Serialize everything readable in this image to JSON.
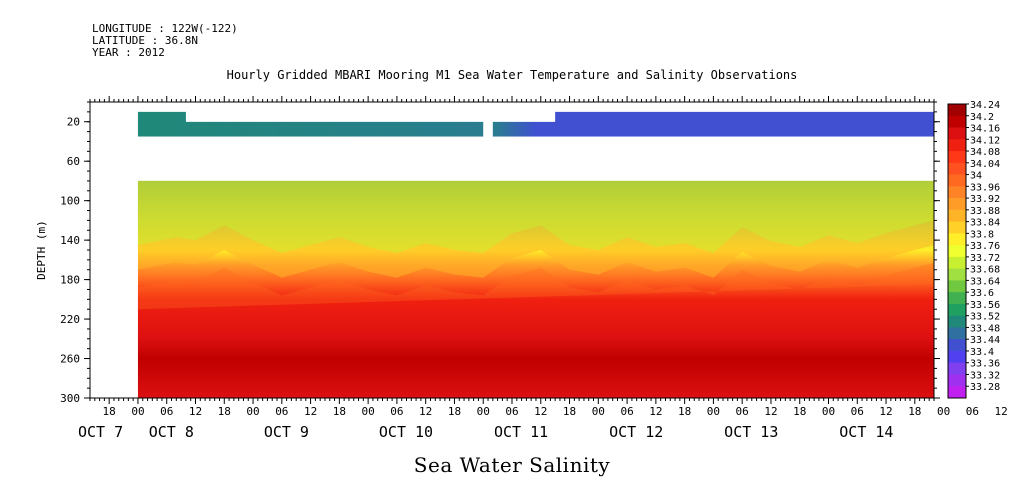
{
  "header": {
    "longitude": "LONGITUDE : 122W(-122)",
    "latitude": "LATITUDE : 36.8N",
    "year": "YEAR : 2012"
  },
  "chart_data": {
    "type": "heatmap",
    "title": "Hourly Gridded MBARI Mooring M1 Sea Water Temperature and Salinity Observations",
    "xlabel": "Sea Water Salinity",
    "ylabel": "DEPTH (m)",
    "x_range_hours_from_oct7_00": [
      -10,
      166
    ],
    "ylim": [
      300,
      0
    ],
    "y_ticks": [
      20,
      60,
      100,
      140,
      180,
      220,
      260,
      300
    ],
    "x_hour_ticks": [
      "18",
      "00",
      "06",
      "12",
      "18",
      "00",
      "06",
      "12",
      "18",
      "00",
      "06",
      "12",
      "18",
      "00",
      "06",
      "12",
      "18",
      "00",
      "06",
      "12",
      "18",
      "00",
      "06",
      "12",
      "18",
      "00",
      "06",
      "12",
      "18",
      "00",
      "06",
      "12",
      "18",
      "00",
      "06",
      "12"
    ],
    "x_day_labels": [
      "OCT  7",
      "OCT  8",
      "OCT  9",
      "OCT 10",
      "OCT 11",
      "OCT 12",
      "OCT 13",
      "OCT 14"
    ],
    "colorbar_levels": [
      34.24,
      34.2,
      34.16,
      34.12,
      34.08,
      34.04,
      34,
      33.96,
      33.92,
      33.88,
      33.84,
      33.8,
      33.76,
      33.72,
      33.68,
      33.64,
      33.6,
      33.56,
      33.52,
      33.48,
      33.44,
      33.4,
      33.36,
      33.32,
      33.28
    ],
    "colorbar_colors": [
      "#a00000",
      "#c00000",
      "#dc1010",
      "#f02010",
      "#ff3818",
      "#ff5020",
      "#ff6a20",
      "#ff8428",
      "#ff9c28",
      "#ffb428",
      "#ffd028",
      "#ffee28",
      "#f0ff30",
      "#c8f030",
      "#a0e040",
      "#70c840",
      "#40b050",
      "#20a060",
      "#208878",
      "#3070a0",
      "#4050d0",
      "#5040f0",
      "#8040f0",
      "#a030f0",
      "#c020f0"
    ],
    "layers": [
      {
        "name": "shallow",
        "depth_range": [
          10,
          35
        ],
        "values": "33.40–33.56",
        "gaps_hours": [
          [
            -10,
            0
          ],
          [
            72,
            74
          ]
        ]
      },
      {
        "name": "no data",
        "depth_range": [
          35,
          80
        ]
      },
      {
        "name": "deep",
        "depth_range": [
          80,
          300
        ],
        "profile": {
          "80": 33.56,
          "120": 33.68,
          "150": 33.8,
          "165": 33.9,
          "180": 34.0,
          "200": 34.1,
          "240": 34.16,
          "260": 34.2,
          "300": 34.14
        }
      }
    ],
    "halocline_depth_m_by_hour": [
      [
        0,
        170
      ],
      [
        8,
        162
      ],
      [
        12,
        165
      ],
      [
        18,
        150
      ],
      [
        24,
        165
      ],
      [
        30,
        178
      ],
      [
        36,
        170
      ],
      [
        42,
        162
      ],
      [
        48,
        172
      ],
      [
        54,
        178
      ],
      [
        60,
        168
      ],
      [
        66,
        175
      ],
      [
        72,
        178
      ],
      [
        78,
        158
      ],
      [
        84,
        150
      ],
      [
        90,
        170
      ],
      [
        96,
        175
      ],
      [
        102,
        162
      ],
      [
        108,
        172
      ],
      [
        114,
        168
      ],
      [
        120,
        178
      ],
      [
        126,
        152
      ],
      [
        132,
        166
      ],
      [
        138,
        172
      ],
      [
        144,
        160
      ],
      [
        150,
        168
      ],
      [
        156,
        158
      ],
      [
        162,
        150
      ],
      [
        166,
        145
      ]
    ]
  }
}
